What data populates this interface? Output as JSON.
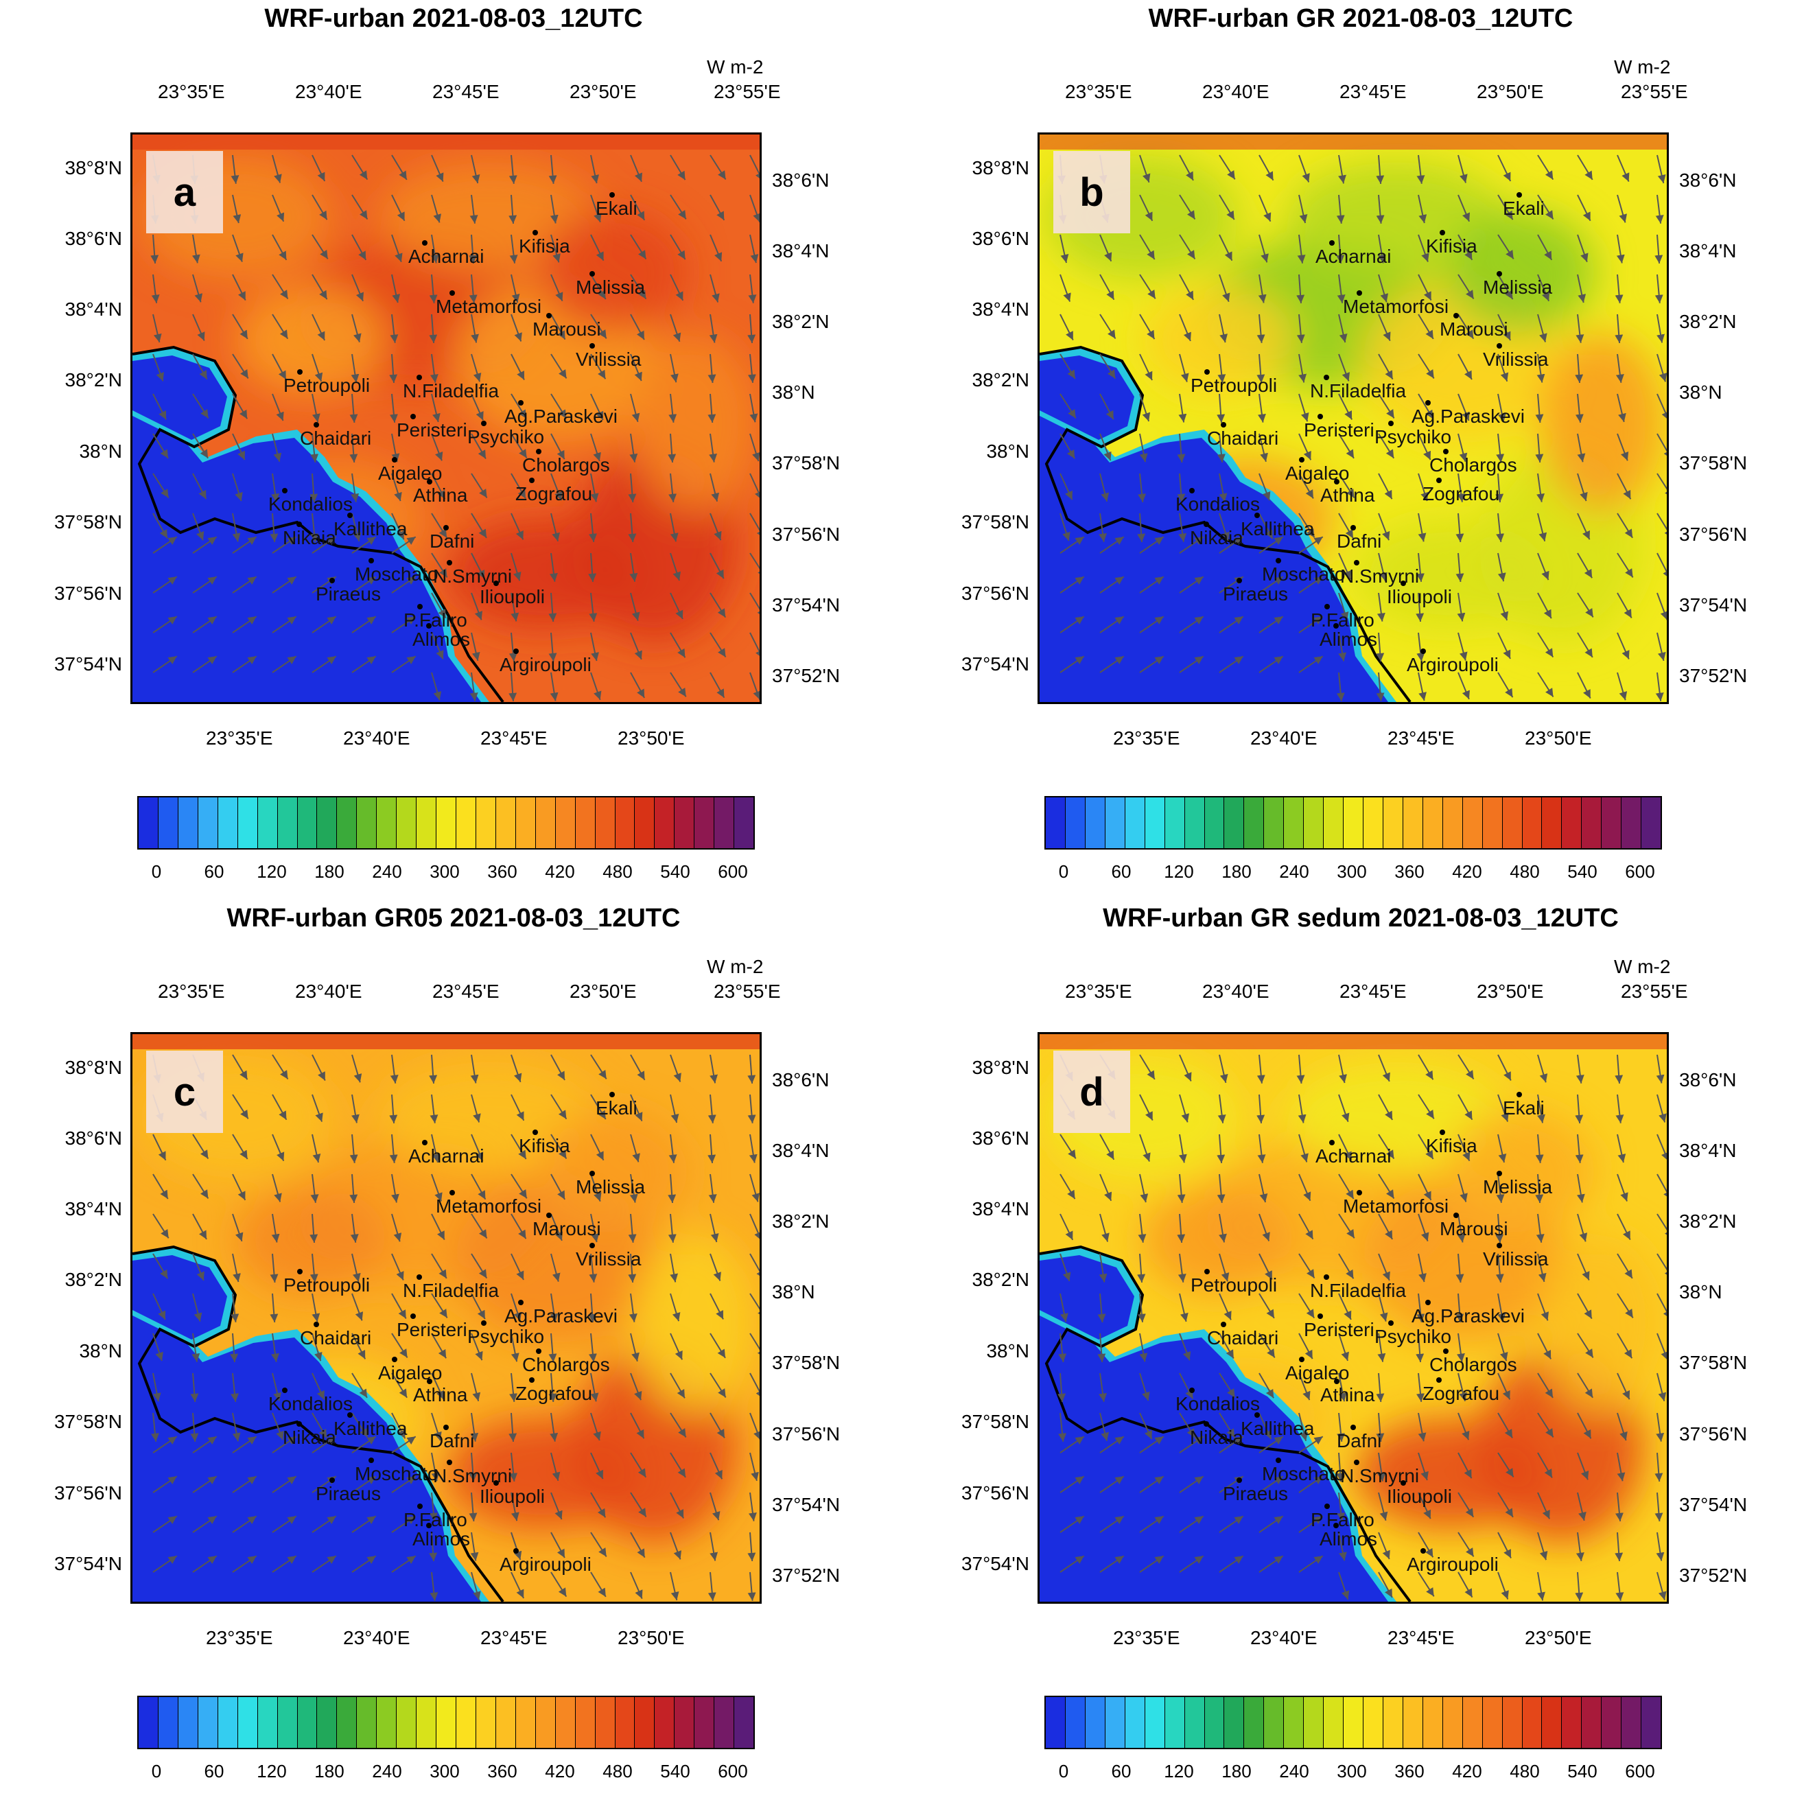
{
  "units": "W m-2",
  "top_lon_ticks": [
    "23°35'E",
    "23°40'E",
    "23°45'E",
    "23°50'E",
    "23°55'E"
  ],
  "bottom_lon_ticks": [
    "23°35'E",
    "23°40'E",
    "23°45'E",
    "23°50'E"
  ],
  "left_lat_ticks": [
    "38°8'N",
    "38°6'N",
    "38°4'N",
    "38°2'N",
    "38°N",
    "37°58'N",
    "37°56'N",
    "37°54'N"
  ],
  "right_lat_ticks": [
    "38°6'N",
    "38°4'N",
    "38°2'N",
    "38°N",
    "37°58'N",
    "37°56'N",
    "37°54'N",
    "37°52'N"
  ],
  "colorbar_labels": [
    "0",
    "60",
    "120",
    "180",
    "240",
    "300",
    "360",
    "420",
    "480",
    "540",
    "600"
  ],
  "colorbar_colors": [
    "#1a2de0",
    "#1f5bf0",
    "#2a86f5",
    "#36aef5",
    "#34cdf0",
    "#2fe0e6",
    "#28d6c0",
    "#22c79a",
    "#1fb87a",
    "#21a85a",
    "#3aaa3a",
    "#66bb2a",
    "#8ccb22",
    "#b4d81c",
    "#d8e21a",
    "#f2ea1c",
    "#fbe01e",
    "#fcd021",
    "#fcbf22",
    "#fbae22",
    "#f99b22",
    "#f68722",
    "#f2731f",
    "#ec5e1c",
    "#e44719",
    "#d83316",
    "#c42226",
    "#a81a3a",
    "#8e1850",
    "#741a66",
    "#5a1c78"
  ],
  "cities": [
    {
      "name": "Ekali"
    },
    {
      "name": "Kifisia"
    },
    {
      "name": "Acharnai"
    },
    {
      "name": "Melissia"
    },
    {
      "name": "Metamorfosi"
    },
    {
      "name": "Marousi"
    },
    {
      "name": "Vrilissia"
    },
    {
      "name": "Petroupoli"
    },
    {
      "name": "N.Filadelfia"
    },
    {
      "name": "Ag.Paraskevi"
    },
    {
      "name": "Psychiko"
    },
    {
      "name": "Chaidari"
    },
    {
      "name": "Peristeri"
    },
    {
      "name": "Cholargos"
    },
    {
      "name": "Aigaleo"
    },
    {
      "name": "Athina"
    },
    {
      "name": "Zografou"
    },
    {
      "name": "Kondalios"
    },
    {
      "name": "Nikaia"
    },
    {
      "name": "Kallithea"
    },
    {
      "name": "Dafni"
    },
    {
      "name": "Moschato"
    },
    {
      "name": "N.Smyrni"
    },
    {
      "name": "Piraeus"
    },
    {
      "name": "Ilioupoli"
    },
    {
      "name": "P.Faliro"
    },
    {
      "name": "Alimos"
    },
    {
      "name": "Argiroupoli"
    }
  ],
  "panels": [
    {
      "id": "a",
      "title": "WRF-urban 2021-08-03_12UTC",
      "base_color": "#ee6422",
      "blotches": [
        "#f58a22",
        "#e44719",
        "#f99b22",
        "#f68722",
        "#d83316"
      ]
    },
    {
      "id": "b",
      "title": "WRF-urban GR 2021-08-03_12UTC",
      "base_color": "#f2ea1c",
      "blotches": [
        "#b4d81c",
        "#8ccb22",
        "#fcd021",
        "#f99b22",
        "#d8e21a"
      ]
    },
    {
      "id": "c",
      "title": "WRF-urban GR05 2021-08-03_12UTC",
      "base_color": "#fbae22",
      "blotches": [
        "#fcbf22",
        "#f99b22",
        "#f68722",
        "#fcd021",
        "#e44719"
      ]
    },
    {
      "id": "d",
      "title": "WRF-urban GR sedum 2021-08-03_12UTC",
      "base_color": "#fcd021",
      "blotches": [
        "#f2ea1c",
        "#fbae22",
        "#f99b22",
        "#fcbf22",
        "#e44719"
      ]
    }
  ]
}
